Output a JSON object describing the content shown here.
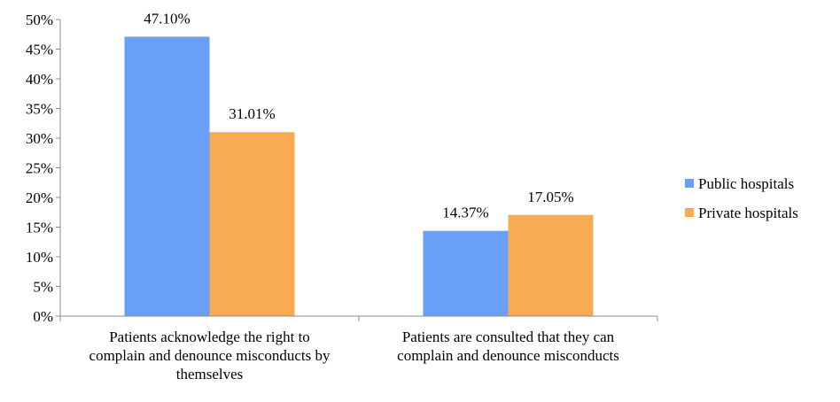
{
  "chart_data": {
    "type": "bar",
    "categories": [
      "Patients acknowledge the right to complain and denounce misconducts by themselves",
      "Patients are consulted that they can complain and denounce misconducts"
    ],
    "category_lines": [
      [
        "Patients acknowledge the right to",
        "complain and denounce misconducts by",
        "themselves"
      ],
      [
        "Patients are consulted that they can",
        "complain and denounce misconducts"
      ]
    ],
    "series": [
      {
        "name": "Public hospitals",
        "values": [
          47.1,
          14.37
        ],
        "labels": [
          "47.10%",
          "14.37%"
        ],
        "color": "#6a9ff8"
      },
      {
        "name": "Private hospitals",
        "values": [
          31.01,
          17.05
        ],
        "labels": [
          "31.01%",
          "17.05%"
        ],
        "color": "#f8ab52"
      }
    ],
    "yticks": [
      "0%",
      "5%",
      "10%",
      "15%",
      "20%",
      "25%",
      "30%",
      "35%",
      "40%",
      "45%",
      "50%"
    ],
    "ylim": [
      0,
      50
    ],
    "title": "",
    "xlabel": "",
    "ylabel": "",
    "grid": false,
    "legend_position": "right"
  }
}
